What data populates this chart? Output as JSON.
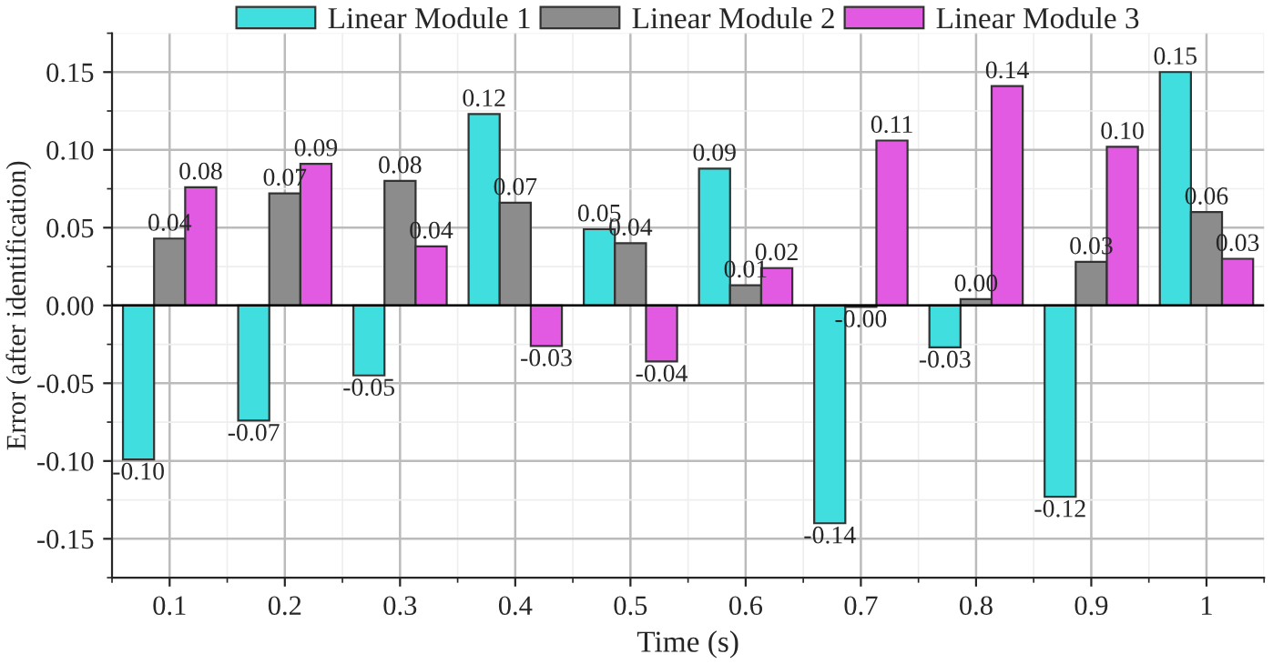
{
  "chart_data": {
    "type": "bar",
    "xlabel": "Time (s)",
    "ylabel": "Error (after identification)",
    "x": [
      0.1,
      0.2,
      0.3,
      0.4,
      0.5,
      0.6,
      0.7,
      0.8,
      0.9,
      1
    ],
    "series": [
      {
        "name": "Linear Module 1",
        "color": "#40dede",
        "values": [
          -0.099,
          -0.074,
          -0.045,
          0.123,
          0.049,
          0.088,
          -0.14,
          -0.027,
          -0.123,
          0.15
        ],
        "value_labels": [
          "-0.10",
          "-0.07",
          "-0.05",
          "0.12",
          "0.05",
          "0.09",
          "-0.14",
          "-0.03",
          "-0.12",
          "0.15"
        ]
      },
      {
        "name": "Linear Module 2",
        "color": "#8c8c8c",
        "values": [
          0.043,
          0.072,
          0.08,
          0.066,
          0.04,
          0.013,
          -0.001,
          0.004,
          0.028,
          0.06
        ],
        "value_labels": [
          "0.04",
          "0.07",
          "0.08",
          "0.07",
          "0.04",
          "0.01",
          "-0.00",
          "0.00",
          "0.03",
          "0.06"
        ]
      },
      {
        "name": "Linear Module 3",
        "color": "#e25ae2",
        "values": [
          0.076,
          0.091,
          0.038,
          -0.026,
          -0.036,
          0.024,
          0.106,
          0.141,
          0.102,
          0.03
        ],
        "value_labels": [
          "0.08",
          "0.09",
          "0.04",
          "-0.03",
          "-0.04",
          "0.02",
          "0.11",
          "0.14",
          "0.10",
          "0.03"
        ]
      }
    ],
    "xlim": [
      0.05,
      1.05
    ],
    "xticks": [
      0.1,
      0.2,
      0.3,
      0.4,
      0.5,
      0.6,
      0.7,
      0.8,
      0.9,
      1
    ],
    "ylim": [
      -0.175,
      0.175
    ],
    "yticks": [
      {
        "value": -0.15,
        "label": "-0.15"
      },
      {
        "value": -0.1,
        "label": "-0.10"
      },
      {
        "value": -0.05,
        "label": "-0.05"
      },
      {
        "value": 0,
        "label": "0.00"
      },
      {
        "value": 0.05,
        "label": "0.05"
      },
      {
        "value": 0.1,
        "label": "0.10"
      },
      {
        "value": 0.15,
        "label": "0.15"
      }
    ],
    "grid": true,
    "legend": "top"
  }
}
